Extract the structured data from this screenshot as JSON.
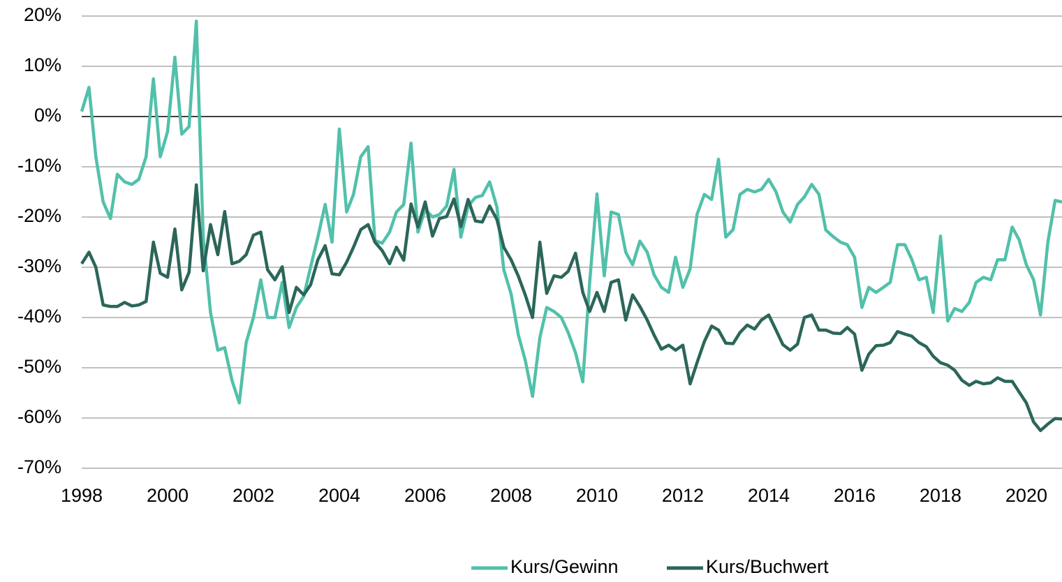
{
  "chart_data": {
    "type": "line",
    "x": [
      1998,
      1998.17,
      1998.33,
      1998.5,
      1998.67,
      1998.83,
      1999,
      1999.17,
      1999.33,
      1999.5,
      1999.67,
      1999.83,
      2000,
      2000.17,
      2000.33,
      2000.5,
      2000.67,
      2000.83,
      2001,
      2001.17,
      2001.33,
      2001.5,
      2001.67,
      2001.83,
      2002,
      2002.17,
      2002.33,
      2002.5,
      2002.67,
      2002.83,
      2003,
      2003.17,
      2003.33,
      2003.5,
      2003.67,
      2003.83,
      2004,
      2004.17,
      2004.33,
      2004.5,
      2004.67,
      2004.83,
      2005,
      2005.17,
      2005.33,
      2005.5,
      2005.67,
      2005.83,
      2006,
      2006.17,
      2006.33,
      2006.5,
      2006.67,
      2006.83,
      2007,
      2007.17,
      2007.33,
      2007.5,
      2007.67,
      2007.83,
      2008,
      2008.17,
      2008.33,
      2008.5,
      2008.67,
      2008.83,
      2009,
      2009.17,
      2009.33,
      2009.5,
      2009.67,
      2009.83,
      2010,
      2010.17,
      2010.33,
      2010.5,
      2010.67,
      2010.83,
      2011,
      2011.17,
      2011.33,
      2011.5,
      2011.67,
      2011.83,
      2012,
      2012.17,
      2012.33,
      2012.5,
      2012.67,
      2012.83,
      2013,
      2013.17,
      2013.33,
      2013.5,
      2013.67,
      2013.83,
      2014,
      2014.17,
      2014.33,
      2014.5,
      2014.67,
      2014.83,
      2015,
      2015.17,
      2015.33,
      2015.5,
      2015.67,
      2015.83,
      2016,
      2016.17,
      2016.33,
      2016.5,
      2016.67,
      2016.83,
      2017,
      2017.17,
      2017.33,
      2017.5,
      2017.67,
      2017.83,
      2018,
      2018.17,
      2018.33,
      2018.5,
      2018.67,
      2018.83,
      2019,
      2019.17,
      2019.33,
      2019.5,
      2019.67,
      2019.83,
      2020,
      2020.17,
      2020.33,
      2020.5,
      2020.67,
      2020.83
    ],
    "series": [
      {
        "name": "Kurs/Gewinn",
        "color": "#52c0aa",
        "values": [
          1,
          5.8,
          -8,
          -17,
          -20.3,
          -11.5,
          -13,
          -13.5,
          -12.5,
          -8,
          7.5,
          -8,
          -3,
          11.8,
          -3.5,
          -2,
          19,
          -24,
          -39,
          -46.5,
          -46,
          -52.5,
          -57,
          -45,
          -40,
          -32.5,
          -40,
          -40,
          -33,
          -42,
          -38,
          -35.8,
          -30,
          -24,
          -17.5,
          -25,
          -2.5,
          -19,
          -15.5,
          -8,
          -6,
          -24.7,
          -25.2,
          -23,
          -19,
          -17.5,
          -5.3,
          -23,
          -18.5,
          -20,
          -19.5,
          -17.8,
          -10.5,
          -24,
          -17.8,
          -16.1,
          -15.7,
          -13,
          -18,
          -30.5,
          -35.3,
          -43.5,
          -48.5,
          -55.7,
          -44,
          -38,
          -38.8,
          -40,
          -43,
          -47,
          -52.8,
          -33,
          -15.4,
          -31.7,
          -19,
          -19.5,
          -27,
          -29.5,
          -24.8,
          -27,
          -31.5,
          -34,
          -35,
          -28,
          -34,
          -30.3,
          -19.5,
          -15.5,
          -16.5,
          -8.5,
          -24,
          -22.5,
          -15.5,
          -14.5,
          -15,
          -14.5,
          -12.5,
          -15,
          -19,
          -21,
          -17.5,
          -16,
          -13.5,
          -15.5,
          -22.6,
          -23.9,
          -25,
          -25.5,
          -28,
          -38,
          -34,
          -35,
          -34,
          -33,
          -25.5,
          -25.5,
          -28.4,
          -32.5,
          -32,
          -39,
          -23.8,
          -40.7,
          -38.2,
          -38.8,
          -37,
          -33,
          -32,
          -32.5,
          -28.5,
          -28.5,
          -22,
          -24.5,
          -29.5,
          -32.5,
          -39.5,
          -25,
          -16.7,
          -17
        ]
      },
      {
        "name": "Kurs/Buchwert",
        "color": "#2b6659",
        "values": [
          -29.3,
          -27,
          -30,
          -37.5,
          -37.8,
          -37.8,
          -37,
          -37.7,
          -37.5,
          -36.8,
          -25,
          -31.2,
          -32,
          -22.4,
          -34.5,
          -31,
          -13.6,
          -30.7,
          -21.5,
          -27.5,
          -18.9,
          -29.3,
          -28.8,
          -27.5,
          -23.6,
          -23,
          -30.5,
          -32.5,
          -29.9,
          -39,
          -34,
          -35.5,
          -33.5,
          -28.5,
          -25.7,
          -31.3,
          -31.5,
          -29,
          -26,
          -22.5,
          -21.5,
          -25,
          -26.7,
          -29.3,
          -26,
          -28.6,
          -17.4,
          -22,
          -17,
          -23.8,
          -20.3,
          -19.9,
          -16.4,
          -21.9,
          -16.5,
          -20.8,
          -21,
          -17.8,
          -20.5,
          -26,
          -28.5,
          -31.8,
          -35.5,
          -40,
          -25,
          -35.2,
          -31.7,
          -32,
          -30.8,
          -27.2,
          -35,
          -38.8,
          -35,
          -38.8,
          -33,
          -32.5,
          -40.5,
          -35.5,
          -37.8,
          -40.5,
          -43.5,
          -46.3,
          -45.5,
          -46.5,
          -45.5,
          -53.2,
          -49,
          -44.8,
          -41.7,
          -42.5,
          -45.1,
          -45.2,
          -43,
          -41.5,
          -42.3,
          -40.5,
          -39.5,
          -42.5,
          -45.4,
          -46.5,
          -45.3,
          -40,
          -39.5,
          -42.5,
          -42.5,
          -43.1,
          -43.2,
          -42,
          -43.3,
          -50.5,
          -47.3,
          -45.6,
          -45.5,
          -45,
          -42.8,
          -43.3,
          -43.7,
          -45,
          -45.8,
          -47.7,
          -49,
          -49.5,
          -50.5,
          -52.5,
          -53.5,
          -52.7,
          -53.2,
          -53,
          -52,
          -52.7,
          -52.7,
          -54.8,
          -57,
          -60.8,
          -62.5,
          -61.2,
          -60.1,
          -60.2
        ]
      }
    ],
    "xlim": [
      1998,
      2020.83
    ],
    "xticks": [
      1998,
      2000,
      2002,
      2004,
      2006,
      2008,
      2010,
      2012,
      2014,
      2016,
      2018,
      2020
    ],
    "ylim": [
      -70,
      20
    ],
    "yticks": [
      {
        "value": 20,
        "label": "20%"
      },
      {
        "value": 10,
        "label": "10%"
      },
      {
        "value": 0,
        "label": "0%"
      },
      {
        "value": -10,
        "label": "-10%"
      },
      {
        "value": -20,
        "label": "-20%"
      },
      {
        "value": -30,
        "label": "-30%"
      },
      {
        "value": -40,
        "label": "-40%"
      },
      {
        "value": -50,
        "label": "-50%"
      },
      {
        "value": -60,
        "label": "-60%"
      },
      {
        "value": -70,
        "label": "-70%"
      }
    ],
    "grid": true,
    "legend": "bottom"
  }
}
